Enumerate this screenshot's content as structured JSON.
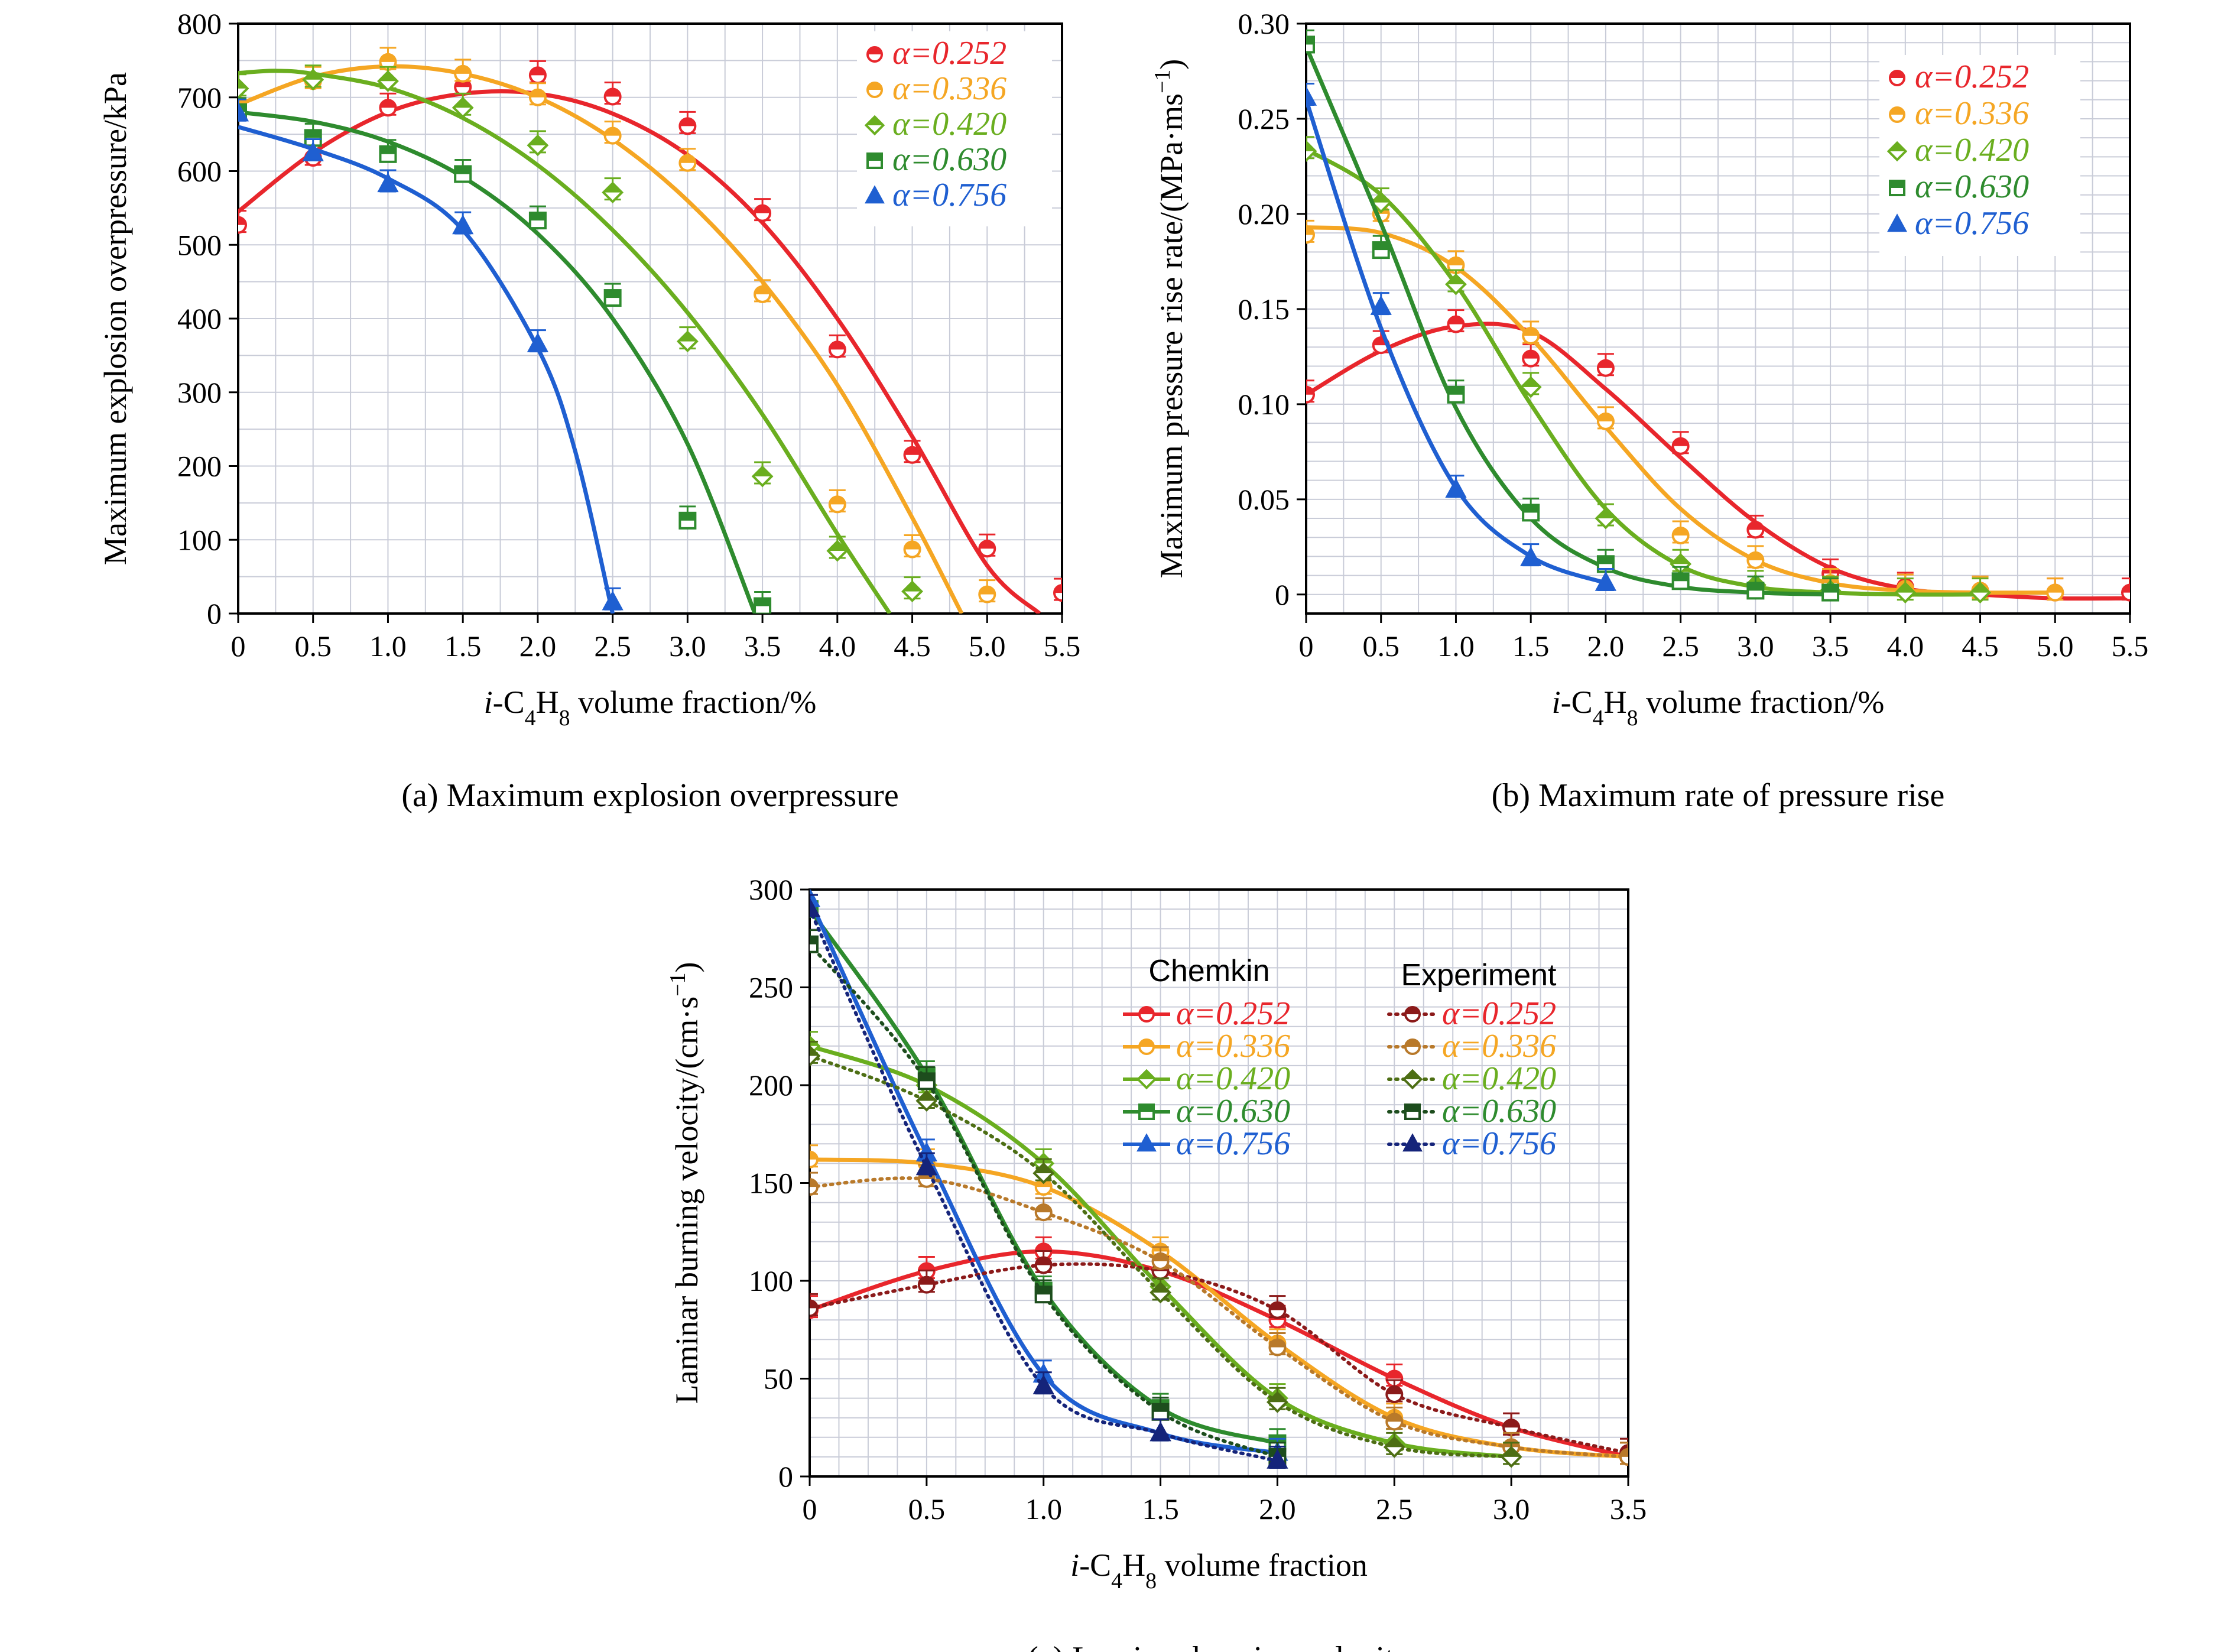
{
  "chart_data": [
    {
      "type": "line",
      "panel": "a",
      "caption": "(a) Maximum explosion overpressure",
      "xlabel": "i-C4H8 volume fraction/%",
      "ylabel": "Maximum explosion overpressure/kPa",
      "xlim": [
        0,
        5.5
      ],
      "ylim": [
        0,
        800
      ],
      "xticks": [
        0,
        0.5,
        1.0,
        1.5,
        2.0,
        2.5,
        3.0,
        3.5,
        4.0,
        4.5,
        5.0,
        5.5
      ],
      "xtick_labels": [
        "0",
        "0.5",
        "1.0",
        "1.5",
        "2.0",
        "2.5",
        "3.0",
        "3.5",
        "4.0",
        "4.5",
        "5.0",
        "5.5"
      ],
      "yticks": [
        0,
        100,
        200,
        300,
        400,
        500,
        600,
        700,
        800
      ],
      "ytick_labels": [
        "0",
        "100",
        "200",
        "300",
        "400",
        "500",
        "600",
        "700",
        "800"
      ],
      "grid": true,
      "legend_position": "top-right",
      "series": [
        {
          "name": "α=0.252",
          "color": "#e8262c",
          "marker": "circle",
          "x": [
            0,
            0.5,
            1.0,
            1.5,
            2.0,
            2.5,
            3.0,
            3.5,
            4.0,
            4.5,
            5.0,
            5.5
          ],
          "y": [
            527,
            618,
            686,
            714,
            730,
            701,
            661,
            543,
            358,
            215,
            88,
            28
          ],
          "fit_x": [
            0,
            0.5,
            1.0,
            1.5,
            2.0,
            2.5,
            3.0,
            3.5,
            4.0,
            4.5,
            5.0,
            5.35
          ],
          "fit_y": [
            545,
            625,
            680,
            705,
            705,
            678,
            622,
            530,
            400,
            240,
            65,
            0
          ]
        },
        {
          "name": "α=0.336",
          "color": "#f5a623",
          "marker": "circle",
          "x": [
            0,
            0.5,
            1.0,
            1.5,
            2.0,
            2.5,
            3.0,
            3.5,
            4.0,
            4.5,
            5.0
          ],
          "y": [
            690,
            722,
            748,
            732,
            700,
            648,
            611,
            433,
            148,
            87,
            26
          ],
          "fit_x": [
            0,
            0.5,
            1.0,
            1.5,
            2.0,
            2.5,
            3.0,
            3.5,
            4.0,
            4.5,
            4.83
          ],
          "fit_y": [
            690,
            728,
            742,
            732,
            700,
            643,
            560,
            450,
            310,
            130,
            0
          ]
        },
        {
          "name": "α=0.420",
          "color": "#6aae1f",
          "marker": "diamond",
          "x": [
            0,
            0.5,
            1.0,
            1.5,
            2.0,
            2.5,
            3.0,
            3.5,
            4.0,
            4.5
          ],
          "y": [
            712,
            724,
            722,
            686,
            635,
            571,
            369,
            186,
            85,
            30
          ],
          "fit_x": [
            0,
            0.25,
            0.5,
            1.0,
            1.5,
            2.0,
            2.5,
            3.0,
            3.5,
            4.0,
            4.35
          ],
          "fit_y": [
            733,
            736,
            732,
            713,
            672,
            608,
            520,
            408,
            270,
            108,
            0
          ]
        },
        {
          "name": "α=0.630",
          "color": "#2e8b2e",
          "marker": "square",
          "x": [
            0,
            0.5,
            1.0,
            1.5,
            2.0,
            2.5,
            3.0,
            3.5
          ],
          "y": [
            680,
            645,
            623,
            596,
            533,
            428,
            126,
            10
          ],
          "fit_x": [
            0,
            0.5,
            1.0,
            1.5,
            2.0,
            2.5,
            3.0,
            3.45
          ],
          "fit_y": [
            680,
            667,
            640,
            592,
            515,
            400,
            230,
            0
          ]
        },
        {
          "name": "α=0.756",
          "color": "#1f5fd1",
          "marker": "triangle",
          "x": [
            0,
            0.5,
            1.0,
            1.5,
            2.0,
            2.5
          ],
          "y": [
            678,
            624,
            582,
            525,
            365,
            15
          ],
          "fit_x": [
            0,
            0.5,
            1.0,
            1.5,
            2.0,
            2.25,
            2.5
          ],
          "fit_y": [
            660,
            630,
            590,
            520,
            360,
            220,
            0
          ]
        }
      ]
    },
    {
      "type": "line",
      "panel": "b",
      "caption": "(b) Maximum rate of pressure rise",
      "xlabel": "i-C4H8 volume fraction/%",
      "ylabel": "Maximum pressure rise rate/(MPa·ms⁻¹)",
      "xlim": [
        0,
        5.5
      ],
      "ylim": [
        -0.01,
        0.3
      ],
      "xticks": [
        0,
        0.5,
        1.0,
        1.5,
        2.0,
        2.5,
        3.0,
        3.5,
        4.0,
        4.5,
        5.0,
        5.5
      ],
      "xtick_labels": [
        "0",
        "0.5",
        "1.0",
        "1.5",
        "2.0",
        "2.5",
        "3.0",
        "3.5",
        "4.0",
        "4.5",
        "5.0",
        "5.5"
      ],
      "yticks": [
        0,
        0.05,
        0.1,
        0.15,
        0.2,
        0.25,
        0.3
      ],
      "ytick_labels": [
        "0",
        "0.05",
        "0.10",
        "0.15",
        "0.20",
        "0.25",
        "0.30"
      ],
      "grid": true,
      "legend_position": "top-right",
      "series": [
        {
          "name": "α=0.252",
          "color": "#e8262c",
          "marker": "circle",
          "x": [
            0,
            0.5,
            1.0,
            1.5,
            2.0,
            2.5,
            3.0,
            3.5,
            4.0,
            4.5,
            5.0,
            5.5
          ],
          "y": [
            0.105,
            0.131,
            0.142,
            0.124,
            0.119,
            0.078,
            0.034,
            0.011,
            0.004,
            0.002,
            0.001,
            0.001
          ],
          "fit_x": [
            0,
            0.5,
            1.0,
            1.5,
            2.0,
            2.5,
            3.0,
            3.5,
            4.0,
            4.5,
            5.0,
            5.5
          ],
          "fit_y": [
            0.105,
            0.128,
            0.141,
            0.138,
            0.108,
            0.072,
            0.038,
            0.014,
            0.003,
            0.0,
            -0.002,
            -0.002
          ]
        },
        {
          "name": "α=0.336",
          "color": "#f5a623",
          "marker": "circle",
          "x": [
            0,
            0.5,
            1.0,
            1.5,
            2.0,
            2.5,
            3.0,
            3.5,
            4.0,
            4.5,
            5.0
          ],
          "y": [
            0.189,
            0.2,
            0.173,
            0.136,
            0.091,
            0.031,
            0.018,
            0.006,
            0.003,
            0.002,
            0.001
          ],
          "fit_x": [
            0,
            0.5,
            1.0,
            1.5,
            2.0,
            2.5,
            3.0,
            3.5,
            4.0,
            4.5,
            5.0
          ],
          "fit_y": [
            0.193,
            0.19,
            0.172,
            0.135,
            0.088,
            0.045,
            0.018,
            0.006,
            0.002,
            0.001,
            0.001
          ]
        },
        {
          "name": "α=0.420",
          "color": "#6aae1f",
          "marker": "diamond",
          "x": [
            0,
            0.5,
            1.0,
            1.5,
            2.0,
            2.5,
            3.0,
            3.5,
            4.0,
            4.5
          ],
          "y": [
            0.233,
            0.206,
            0.163,
            0.109,
            0.04,
            0.016,
            0.005,
            0.002,
            0.001,
            0.001
          ],
          "fit_x": [
            0,
            0.5,
            1.0,
            1.5,
            2.0,
            2.5,
            3.0,
            3.5,
            4.0,
            4.5
          ],
          "fit_y": [
            0.234,
            0.21,
            0.163,
            0.1,
            0.045,
            0.015,
            0.004,
            0.001,
            0.0,
            0.0
          ]
        },
        {
          "name": "α=0.630",
          "color": "#2e8b2e",
          "marker": "square",
          "x": [
            0,
            0.5,
            1.0,
            1.5,
            2.0,
            2.5,
            3.0,
            3.5
          ],
          "y": [
            0.289,
            0.181,
            0.105,
            0.043,
            0.016,
            0.007,
            0.002,
            0.001
          ],
          "fit_x": [
            0,
            0.5,
            1.0,
            1.5,
            2.0,
            2.5,
            3.0,
            3.5
          ],
          "fit_y": [
            0.288,
            0.195,
            0.098,
            0.04,
            0.014,
            0.004,
            0.001,
            0.0
          ]
        },
        {
          "name": "α=0.756",
          "color": "#1f5fd1",
          "marker": "triangle",
          "x": [
            0,
            0.5,
            1.0,
            1.5,
            2.0
          ],
          "y": [
            0.261,
            0.151,
            0.055,
            0.019,
            0.006
          ],
          "fit_x": [
            0,
            0.5,
            1.0,
            1.5,
            2.0
          ],
          "fit_y": [
            0.26,
            0.14,
            0.056,
            0.02,
            0.006
          ]
        }
      ]
    },
    {
      "type": "line",
      "panel": "c",
      "caption": "(c) Laminar burning velocity",
      "xlabel": "i-C4H8 volume fraction",
      "ylabel": "Laminar burning velocity/(cm·s⁻¹)",
      "xlim": [
        0,
        3.5
      ],
      "ylim": [
        0,
        300
      ],
      "xticks": [
        0,
        0.5,
        1.0,
        1.5,
        2.0,
        2.5,
        3.0,
        3.5
      ],
      "xtick_labels": [
        "0",
        "0.5",
        "1.0",
        "1.5",
        "2.0",
        "2.5",
        "3.0",
        "3.5"
      ],
      "yticks": [
        0,
        50,
        100,
        150,
        200,
        250,
        300
      ],
      "ytick_labels": [
        "0",
        "50",
        "100",
        "150",
        "200",
        "250",
        "300"
      ],
      "grid": true,
      "legend_headers": [
        "Chemkin",
        "Experiment"
      ],
      "legend_position": "top-right",
      "series": [
        {
          "name": "α=0.252",
          "group": "Chemkin",
          "color": "#e8262c",
          "marker": "circle",
          "style": "solid",
          "x": [
            0,
            0.5,
            1.0,
            1.5,
            2.0,
            2.5,
            3.0,
            3.5
          ],
          "y": [
            85,
            105,
            115,
            105,
            80,
            50,
            25,
            10
          ]
        },
        {
          "name": "α=0.336",
          "group": "Chemkin",
          "color": "#f5a623",
          "marker": "circle",
          "style": "solid",
          "x": [
            0,
            0.5,
            1.0,
            1.5,
            2.0,
            2.5,
            3.0,
            3.5
          ],
          "y": [
            162,
            160,
            148,
            115,
            68,
            30,
            15,
            10
          ]
        },
        {
          "name": "α=0.420",
          "group": "Chemkin",
          "color": "#6aae1f",
          "marker": "diamond",
          "style": "solid",
          "x": [
            0,
            0.5,
            1.0,
            1.5,
            2.0,
            2.5,
            3.0
          ],
          "y": [
            220,
            200,
            160,
            97,
            40,
            17,
            10
          ]
        },
        {
          "name": "α=0.630",
          "group": "Chemkin",
          "color": "#2e8b2e",
          "marker": "square",
          "style": "solid",
          "x": [
            0,
            0.5,
            1.0,
            1.5,
            2.0
          ],
          "y": [
            290,
            205,
            95,
            35,
            17
          ]
        },
        {
          "name": "α=0.756",
          "group": "Chemkin",
          "color": "#1f5fd1",
          "marker": "triangle",
          "style": "solid",
          "x": [
            0,
            0.5,
            1.0,
            1.5,
            2.0
          ],
          "y": [
            295,
            165,
            52,
            22,
            12
          ]
        },
        {
          "name": "α=0.252",
          "group": "Experiment",
          "color": "#8b1a1a",
          "marker": "circle",
          "style": "dotted",
          "x": [
            0,
            0.5,
            1.0,
            1.5,
            2.0,
            2.5,
            3.0,
            3.5
          ],
          "y": [
            86,
            98,
            108,
            105,
            85,
            42,
            25,
            12
          ]
        },
        {
          "name": "α=0.336",
          "group": "Experiment",
          "color": "#b8792a",
          "marker": "circle",
          "style": "dotted",
          "x": [
            0,
            0.5,
            1.0,
            1.5,
            2.0,
            2.5,
            3.0,
            3.5
          ],
          "y": [
            148,
            152,
            135,
            110,
            66,
            28,
            15,
            10
          ]
        },
        {
          "name": "α=0.420",
          "group": "Experiment",
          "color": "#4d6e14",
          "marker": "diamond",
          "style": "dotted",
          "x": [
            0,
            0.5,
            1.0,
            1.5,
            2.0,
            2.5,
            3.0
          ],
          "y": [
            215,
            192,
            155,
            94,
            38,
            15,
            10
          ]
        },
        {
          "name": "α=0.630",
          "group": "Experiment",
          "color": "#1d4d1d",
          "marker": "square",
          "style": "dotted",
          "x": [
            0,
            0.5,
            1.0,
            1.5,
            2.0
          ],
          "y": [
            272,
            202,
            93,
            33,
            10
          ]
        },
        {
          "name": "α=0.756",
          "group": "Experiment",
          "color": "#15247a",
          "marker": "triangle",
          "style": "dotted",
          "x": [
            0,
            0.5,
            1.0,
            1.5,
            2.0
          ],
          "y": [
            290,
            158,
            46,
            22,
            8
          ]
        }
      ]
    }
  ]
}
